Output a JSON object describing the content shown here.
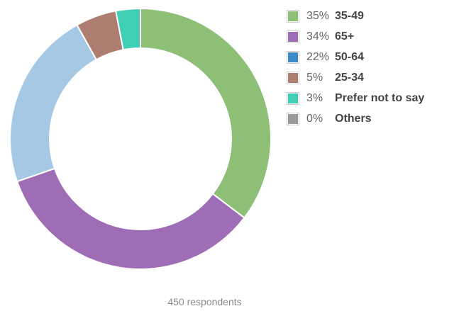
{
  "chart_data": {
    "type": "pie",
    "donut": true,
    "legend_position": "right",
    "slices": [
      {
        "label": "35-49",
        "percent": 35,
        "percent_label": "35%",
        "color": "#8dbf76"
      },
      {
        "label": "65+",
        "percent": 34,
        "percent_label": "34%",
        "color": "#9f6db5"
      },
      {
        "label": "50-64",
        "percent": 22,
        "percent_label": "22%",
        "color": "#a5c8e4",
        "legend_color": "#3b8ac6"
      },
      {
        "label": "25-34",
        "percent": 5,
        "percent_label": "5%",
        "color": "#ad7e70"
      },
      {
        "label": "Prefer not to say",
        "percent": 3,
        "percent_label": "3%",
        "color": "#3fcfb4"
      },
      {
        "label": "Others",
        "percent": 0,
        "percent_label": "0%",
        "color": "#9a9a9a"
      }
    ],
    "footer": "450 respondents"
  }
}
